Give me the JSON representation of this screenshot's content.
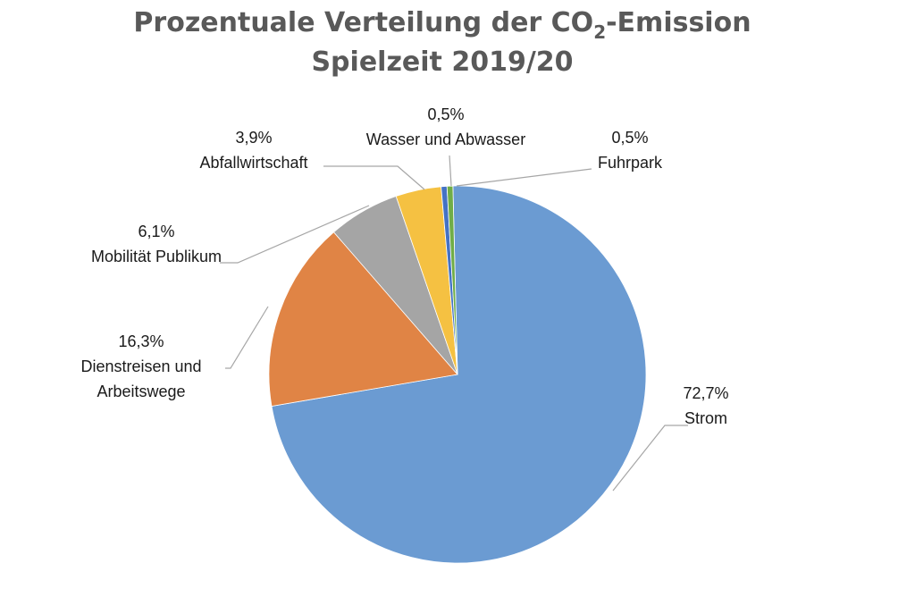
{
  "chart_data": {
    "type": "pie",
    "title_main": "Prozentuale Verteilung der CO",
    "title_subscript": "2",
    "title_suffix": "-Emission",
    "subtitle": "Spielzeit 2019/20",
    "start_angle_deg": -1.4,
    "direction": "clockwise",
    "slices": [
      {
        "name": "Strom",
        "value": 72.7,
        "label": "72,7%",
        "color": "#6b9bd2"
      },
      {
        "name": "Dienstreisen und Arbeitswege",
        "label_lines": [
          "Dienstreisen und",
          "Arbeitswege"
        ],
        "value": 16.3,
        "label": "16,3%",
        "color": "#e08445"
      },
      {
        "name": "Mobilität Publikum",
        "value": 6.1,
        "label": "6,1%",
        "color": "#a5a5a5"
      },
      {
        "name": "Abfallwirtschaft",
        "value": 3.9,
        "label": "3,9%",
        "color": "#f5c142"
      },
      {
        "name": "Wasser und Abwasser",
        "value": 0.5,
        "label": "0,5%",
        "color": "#4472c4"
      },
      {
        "name": "Fuhrpark",
        "value": 0.5,
        "label": "0,5%",
        "color": "#70ad47"
      }
    ]
  }
}
